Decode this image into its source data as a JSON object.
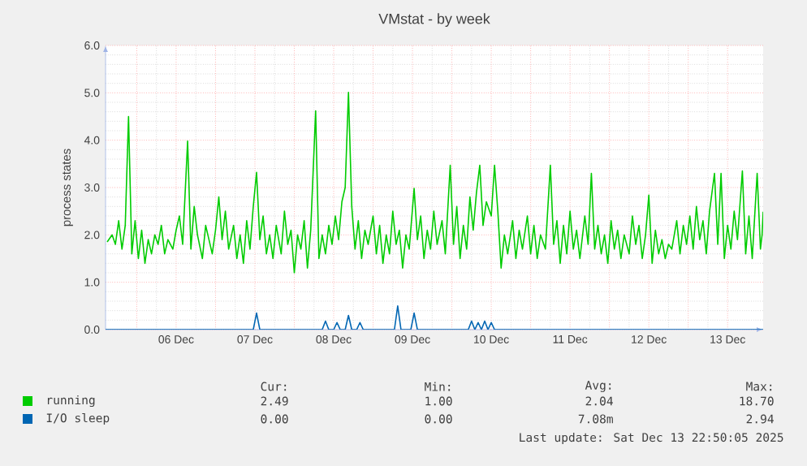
{
  "chart_data": {
    "type": "line",
    "title": "VMstat - by week",
    "ylabel": "process states",
    "xlim": [
      "2025-12-05T14:30",
      "2025-12-13T22:50"
    ],
    "xticks": [
      {
        "value": "2025-12-06",
        "label": null
      },
      {
        "value": "2025-12-06T12:00",
        "label": "06 Dec"
      },
      {
        "value": "2025-12-07",
        "label": null
      },
      {
        "value": "2025-12-07T12:00",
        "label": "07 Dec"
      },
      {
        "value": "2025-12-08",
        "label": null
      },
      {
        "value": "2025-12-08T12:00",
        "label": "08 Dec"
      },
      {
        "value": "2025-12-09",
        "label": null
      },
      {
        "value": "2025-12-09T12:00",
        "label": "09 Dec"
      },
      {
        "value": "2025-12-10",
        "label": null
      },
      {
        "value": "2025-12-10T12:00",
        "label": "10 Dec"
      },
      {
        "value": "2025-12-11",
        "label": null
      },
      {
        "value": "2025-12-11T12:00",
        "label": "11 Dec"
      },
      {
        "value": "2025-12-12",
        "label": null
      },
      {
        "value": "2025-12-12T12:00",
        "label": "12 Dec"
      },
      {
        "value": "2025-12-13",
        "label": null
      },
      {
        "value": "2025-12-13T12:00",
        "label": "13 Dec"
      }
    ],
    "ylim": [
      0,
      6
    ],
    "yticks": [
      {
        "value": 0,
        "label": "0.0"
      },
      {
        "value": 1,
        "label": "1.0"
      },
      {
        "value": 2,
        "label": "2.0"
      },
      {
        "value": 3,
        "label": "3.0"
      },
      {
        "value": 4,
        "label": "4.0"
      },
      {
        "value": 5,
        "label": "5.0"
      },
      {
        "value": 6,
        "label": "6.0"
      }
    ],
    "grid": true,
    "legend": "bottom",
    "marker": "none",
    "line_style": "solid",
    "series": [
      {
        "name": "running",
        "color": "#00cc00",
        "x": [
          "2025-12-05T15:00",
          "2025-12-05T16:30",
          "2025-12-05T17:30",
          "2025-12-05T18:30",
          "2025-12-05T19:30",
          "2025-12-05T20:30",
          "2025-12-05T21:30",
          "2025-12-05T22:30",
          "2025-12-05T23:30",
          "2025-12-06T00:30",
          "2025-12-06T01:30",
          "2025-12-06T02:30",
          "2025-12-06T03:30",
          "2025-12-06T04:30",
          "2025-12-06T05:30",
          "2025-12-06T06:30",
          "2025-12-06T07:30",
          "2025-12-06T08:30",
          "2025-12-06T09:30",
          "2025-12-06T11:00",
          "2025-12-06T12:00",
          "2025-12-06T13:00",
          "2025-12-06T14:00",
          "2025-12-06T15:30",
          "2025-12-06T16:30",
          "2025-12-06T17:30",
          "2025-12-06T18:30",
          "2025-12-06T20:00",
          "2025-12-06T21:00",
          "2025-12-06T22:00",
          "2025-12-06T23:00",
          "2025-12-07T00:00",
          "2025-12-07T01:00",
          "2025-12-07T02:00",
          "2025-12-07T03:00",
          "2025-12-07T04:00",
          "2025-12-07T05:30",
          "2025-12-07T06:30",
          "2025-12-07T07:30",
          "2025-12-07T08:30",
          "2025-12-07T09:30",
          "2025-12-07T10:30",
          "2025-12-07T11:30",
          "2025-12-07T12:30",
          "2025-12-07T13:30",
          "2025-12-07T14:30",
          "2025-12-07T15:30",
          "2025-12-07T16:30",
          "2025-12-07T17:30",
          "2025-12-07T18:30",
          "2025-12-07T20:00",
          "2025-12-07T21:00",
          "2025-12-07T22:00",
          "2025-12-07T23:00",
          "2025-12-08T00:00",
          "2025-12-08T01:00",
          "2025-12-08T02:00",
          "2025-12-08T03:00",
          "2025-12-08T04:00",
          "2025-12-08T05:00",
          "2025-12-08T06:30",
          "2025-12-08T07:30",
          "2025-12-08T08:30",
          "2025-12-08T09:30",
          "2025-12-08T10:30",
          "2025-12-08T11:30",
          "2025-12-08T12:30",
          "2025-12-08T13:30",
          "2025-12-08T14:30",
          "2025-12-08T15:30",
          "2025-12-08T16:30",
          "2025-12-08T17:30",
          "2025-12-08T18:30",
          "2025-12-08T19:30",
          "2025-12-08T20:30",
          "2025-12-08T21:30",
          "2025-12-08T22:30",
          "2025-12-09T00:00",
          "2025-12-09T01:00",
          "2025-12-09T02:00",
          "2025-12-09T03:00",
          "2025-12-09T04:00",
          "2025-12-09T05:00",
          "2025-12-09T06:00",
          "2025-12-09T07:00",
          "2025-12-09T08:00",
          "2025-12-09T09:00",
          "2025-12-09T10:00",
          "2025-12-09T11:00",
          "2025-12-09T12:30",
          "2025-12-09T13:30",
          "2025-12-09T14:30",
          "2025-12-09T15:30",
          "2025-12-09T16:30",
          "2025-12-09T17:30",
          "2025-12-09T18:30",
          "2025-12-09T19:30",
          "2025-12-09T21:00",
          "2025-12-09T22:00",
          "2025-12-09T23:30",
          "2025-12-10T00:30",
          "2025-12-10T01:30",
          "2025-12-10T02:30",
          "2025-12-10T03:30",
          "2025-12-10T04:30",
          "2025-12-10T05:30",
          "2025-12-10T06:30",
          "2025-12-10T07:30",
          "2025-12-10T08:30",
          "2025-12-10T09:30",
          "2025-12-10T10:30",
          "2025-12-10T12:00",
          "2025-12-10T13:00",
          "2025-12-10T14:00",
          "2025-12-10T15:00",
          "2025-12-10T16:00",
          "2025-12-10T17:00",
          "2025-12-10T18:30",
          "2025-12-10T19:30",
          "2025-12-10T20:30",
          "2025-12-10T21:30",
          "2025-12-10T23:00",
          "2025-12-11T00:00",
          "2025-12-11T01:00",
          "2025-12-11T02:00",
          "2025-12-11T03:00",
          "2025-12-11T04:30",
          "2025-12-11T06:00",
          "2025-12-11T07:00",
          "2025-12-11T08:00",
          "2025-12-11T09:00",
          "2025-12-11T10:00",
          "2025-12-11T11:00",
          "2025-12-11T12:00",
          "2025-12-11T13:00",
          "2025-12-11T14:00",
          "2025-12-11T15:00",
          "2025-12-11T16:30",
          "2025-12-11T17:30",
          "2025-12-11T18:30",
          "2025-12-11T19:30",
          "2025-12-11T20:30",
          "2025-12-11T21:30",
          "2025-12-11T22:30",
          "2025-12-11T23:30",
          "2025-12-12T00:30",
          "2025-12-12T01:30",
          "2025-12-12T02:30",
          "2025-12-12T03:30",
          "2025-12-12T04:30",
          "2025-12-12T06:00",
          "2025-12-12T07:00",
          "2025-12-12T08:00",
          "2025-12-12T09:00",
          "2025-12-12T10:00",
          "2025-12-12T11:00",
          "2025-12-12T12:00",
          "2025-12-12T13:00",
          "2025-12-12T14:00",
          "2025-12-12T15:00",
          "2025-12-12T16:00",
          "2025-12-12T17:00",
          "2025-12-12T18:00",
          "2025-12-12T19:00",
          "2025-12-12T20:30",
          "2025-12-12T21:30",
          "2025-12-12T22:30",
          "2025-12-12T23:30",
          "2025-12-13T00:30",
          "2025-12-13T01:30",
          "2025-12-13T02:30",
          "2025-12-13T03:30",
          "2025-12-13T04:30",
          "2025-12-13T05:30",
          "2025-12-13T06:30",
          "2025-12-13T08:00",
          "2025-12-13T09:00",
          "2025-12-13T10:00",
          "2025-12-13T11:00",
          "2025-12-13T12:00",
          "2025-12-13T13:00",
          "2025-12-13T14:00",
          "2025-12-13T15:00",
          "2025-12-13T16:30",
          "2025-12-13T17:30",
          "2025-12-13T18:30",
          "2025-12-13T19:30",
          "2025-12-13T21:00",
          "2025-12-13T22:00",
          "2025-12-13T22:30",
          "2025-12-13T22:50"
        ],
        "values": [
          1.85,
          2.0,
          1.8,
          2.3,
          1.7,
          2.2,
          4.5,
          1.6,
          2.3,
          1.5,
          2.1,
          1.4,
          1.9,
          1.6,
          2.0,
          1.8,
          2.2,
          1.6,
          1.9,
          1.7,
          2.1,
          2.4,
          1.8,
          3.98,
          1.7,
          2.6,
          2.0,
          1.5,
          2.2,
          1.9,
          1.6,
          2.1,
          2.8,
          1.9,
          2.5,
          1.7,
          2.2,
          1.5,
          2.0,
          1.4,
          2.3,
          1.7,
          2.6,
          3.32,
          1.9,
          2.4,
          1.6,
          2.0,
          1.5,
          2.2,
          1.6,
          2.5,
          1.8,
          2.1,
          1.2,
          2.0,
          1.7,
          2.3,
          1.3,
          2.1,
          4.62,
          1.5,
          2.0,
          1.6,
          2.2,
          1.8,
          2.4,
          1.9,
          2.7,
          3.0,
          5.01,
          2.6,
          1.7,
          2.3,
          1.5,
          2.1,
          1.8,
          2.4,
          1.6,
          2.2,
          1.4,
          2.0,
          1.6,
          2.5,
          1.8,
          2.1,
          1.3,
          2.0,
          1.7,
          2.98,
          1.9,
          2.4,
          1.5,
          2.1,
          1.7,
          2.5,
          1.8,
          2.3,
          1.6,
          3.47,
          1.8,
          2.6,
          1.5,
          2.2,
          1.7,
          2.8,
          2.1,
          2.9,
          3.47,
          2.2,
          2.7,
          2.4,
          3.47,
          2.5,
          1.3,
          2.0,
          1.6,
          2.3,
          1.5,
          2.1,
          1.7,
          2.4,
          1.6,
          2.2,
          1.5,
          2.0,
          1.7,
          3.47,
          1.8,
          2.3,
          1.4,
          2.2,
          1.6,
          2.5,
          1.7,
          2.1,
          1.5,
          2.4,
          1.8,
          3.3,
          1.7,
          2.2,
          1.6,
          2.0,
          1.4,
          2.3,
          1.7,
          2.1,
          1.5,
          2.0,
          1.6,
          2.4,
          1.8,
          2.2,
          1.5,
          2.0,
          2.84,
          1.4,
          2.1,
          1.6,
          1.9,
          1.5,
          1.8,
          1.7,
          2.3,
          1.6,
          2.2,
          1.8,
          2.4,
          1.7,
          2.6,
          1.9,
          2.3,
          1.6,
          2.5,
          3.3,
          1.8,
          3.3,
          1.5,
          2.2,
          1.7,
          2.5,
          1.9,
          3.35,
          1.6,
          2.4,
          1.5,
          3.3,
          1.7,
          2.0,
          2.49
        ]
      },
      {
        "name": "I/O sleep",
        "color": "#0066b3",
        "x": [
          "2025-12-05T14:30",
          "2025-12-07T11:30",
          "2025-12-07T12:30",
          "2025-12-07T13:30",
          "2025-12-08T08:30",
          "2025-12-08T09:30",
          "2025-12-08T10:30",
          "2025-12-08T12:00",
          "2025-12-08T13:00",
          "2025-12-08T14:00",
          "2025-12-08T15:30",
          "2025-12-08T16:30",
          "2025-12-08T17:30",
          "2025-12-08T19:00",
          "2025-12-08T20:00",
          "2025-12-08T21:00",
          "2025-12-09T06:30",
          "2025-12-09T07:30",
          "2025-12-09T08:30",
          "2025-12-09T11:30",
          "2025-12-09T12:30",
          "2025-12-09T13:30",
          "2025-12-10T05:00",
          "2025-12-10T06:00",
          "2025-12-10T07:00",
          "2025-12-10T08:00",
          "2025-12-10T09:00",
          "2025-12-10T10:00",
          "2025-12-10T11:00",
          "2025-12-10T12:00",
          "2025-12-10T13:00",
          "2025-12-13T22:50"
        ],
        "values": [
          0,
          0,
          0.35,
          0,
          0,
          0.18,
          0,
          0,
          0.15,
          0,
          0,
          0.3,
          0,
          0,
          0.15,
          0,
          0,
          0.5,
          0,
          0,
          0.35,
          0,
          0,
          0.18,
          0,
          0.15,
          0,
          0.18,
          0,
          0.15,
          0,
          0
        ]
      }
    ],
    "annotations": [
      "Cur:",
      "Min:",
      "Avg:",
      "Max:",
      "2.49",
      "1.00",
      "2.04",
      "18.70",
      "0.00",
      "0.00",
      "7.08m",
      "2.94",
      "Last update: Sat Dec 13 22:50:05 2025"
    ]
  }
}
